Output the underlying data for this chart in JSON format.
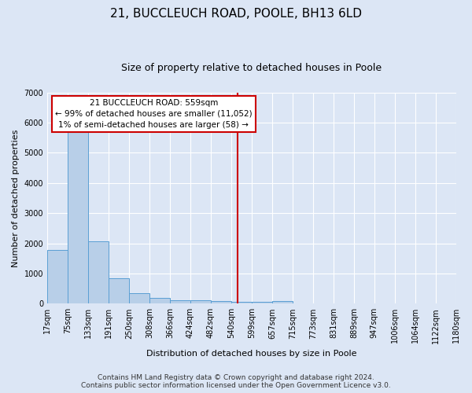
{
  "title1": "21, BUCCLEUCH ROAD, POOLE, BH13 6LD",
  "title2": "Size of property relative to detached houses in Poole",
  "xlabel": "Distribution of detached houses by size in Poole",
  "ylabel": "Number of detached properties",
  "bar_edges": [
    17,
    75,
    133,
    191,
    250,
    308,
    366,
    424,
    482,
    540,
    599,
    657,
    715,
    773,
    831,
    889,
    947,
    1006,
    1064,
    1122,
    1180
  ],
  "bar_heights": [
    1780,
    5800,
    2060,
    850,
    340,
    200,
    120,
    110,
    90,
    60,
    50,
    80,
    0,
    0,
    0,
    0,
    0,
    0,
    0,
    0
  ],
  "bar_color": "#b8cfe8",
  "bar_edge_color": "#5a9fd4",
  "background_color": "#dce6f5",
  "grid_color": "#ffffff",
  "vline_x": 559,
  "vline_color": "#cc0000",
  "annotation_lines": [
    "21 BUCCLEUCH ROAD: 559sqm",
    "← 99% of detached houses are smaller (11,052)",
    "1% of semi-detached houses are larger (58) →"
  ],
  "annotation_box_color": "#ffffff",
  "annotation_box_edgecolor": "#cc0000",
  "ylim": [
    0,
    7000
  ],
  "yticks": [
    0,
    1000,
    2000,
    3000,
    4000,
    5000,
    6000,
    7000
  ],
  "tick_labels": [
    "17sqm",
    "75sqm",
    "133sqm",
    "191sqm",
    "250sqm",
    "308sqm",
    "366sqm",
    "424sqm",
    "482sqm",
    "540sqm",
    "599sqm",
    "657sqm",
    "715sqm",
    "773sqm",
    "831sqm",
    "889sqm",
    "947sqm",
    "1006sqm",
    "1064sqm",
    "1122sqm",
    "1180sqm"
  ],
  "footer": "Contains HM Land Registry data © Crown copyright and database right 2024.\nContains public sector information licensed under the Open Government Licence v3.0.",
  "title1_fontsize": 11,
  "title2_fontsize": 9,
  "axis_label_fontsize": 8,
  "tick_fontsize": 7,
  "footer_fontsize": 6.5,
  "annotation_fontsize": 7.5
}
